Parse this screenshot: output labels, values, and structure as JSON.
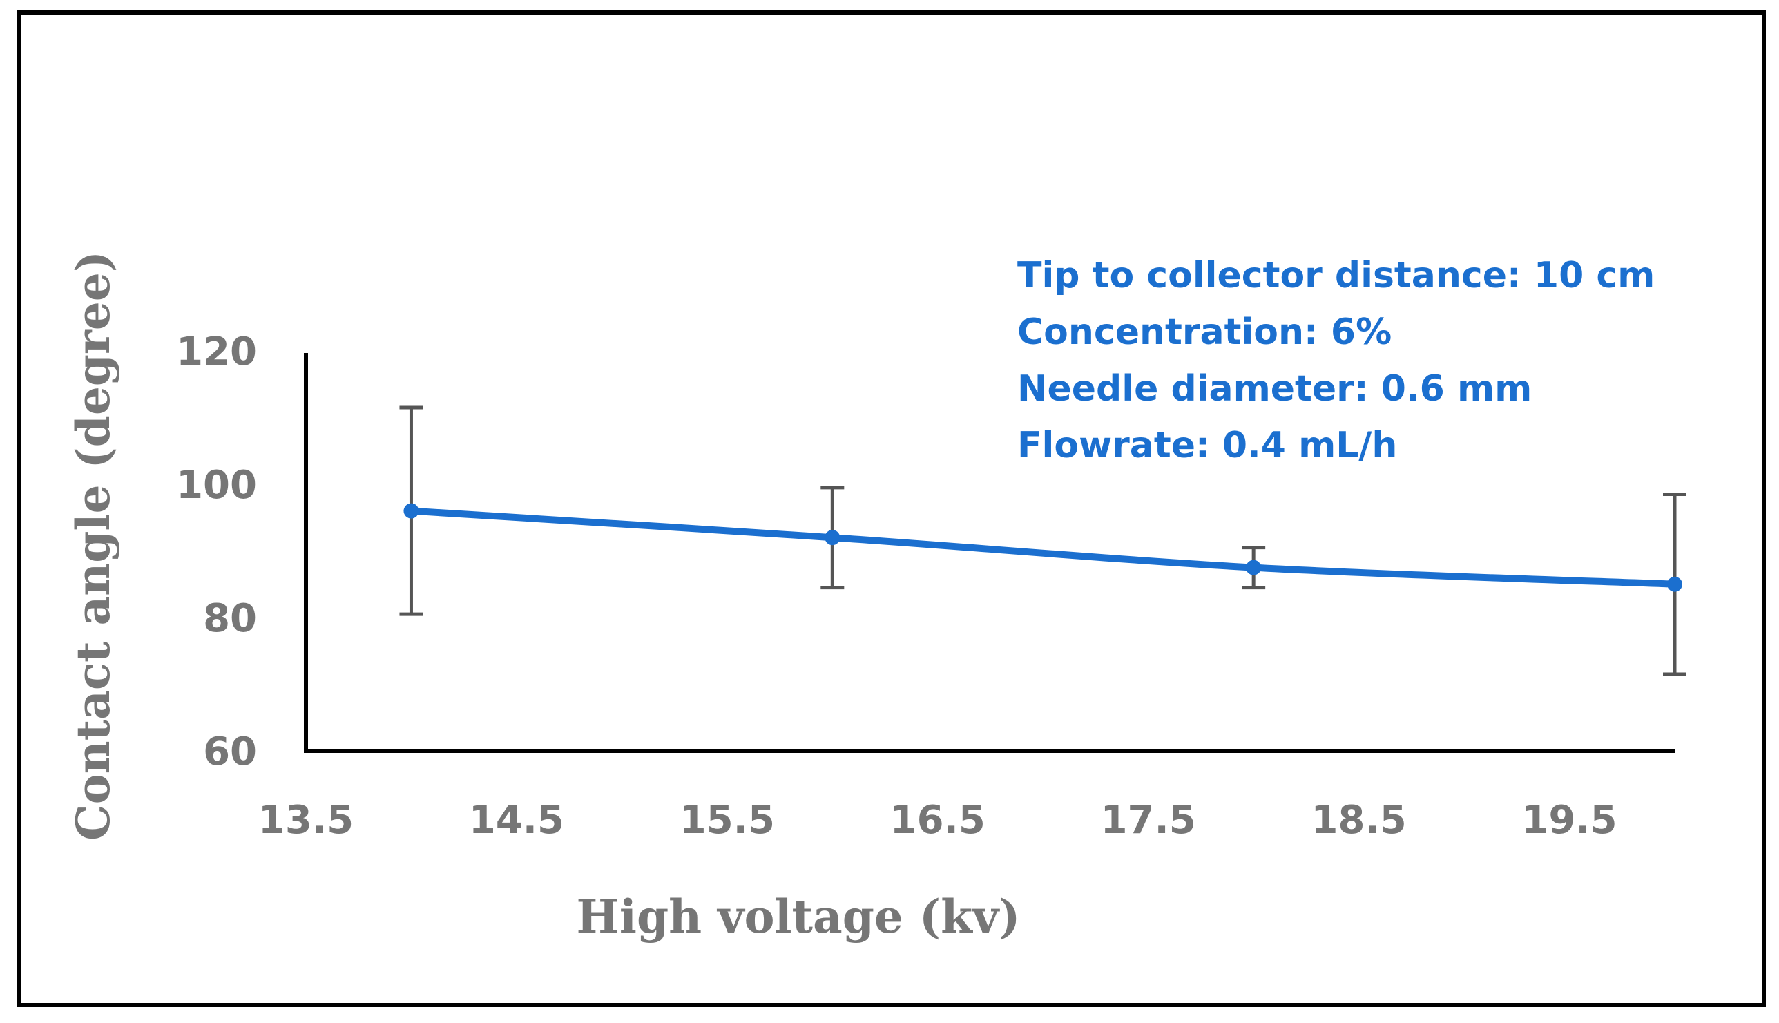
{
  "chart_data": {
    "type": "line",
    "title": "",
    "xlabel": "High voltage (kv)",
    "ylabel": "Contact angle (degree)",
    "xlim": [
      13.5,
      20.0
    ],
    "ylim": [
      60,
      120
    ],
    "x_ticks": [
      "13.5",
      "14.5",
      "15.5",
      "16.5",
      "17.5",
      "18.5",
      "19.5"
    ],
    "y_ticks": [
      "60",
      "80",
      "100",
      "120"
    ],
    "grid": false,
    "legend": "none",
    "series": [
      {
        "name": "Contact angle",
        "color": "#1b6fcf",
        "x": [
          14,
          16,
          18,
          20
        ],
        "y": [
          96,
          92,
          87.5,
          85
        ],
        "error": [
          15.5,
          7.5,
          3,
          13.5
        ]
      }
    ],
    "annotations": [
      "Tip to collector distance: 10 cm",
      "Concentration: 6%",
      "Needle diameter: 0.6 mm",
      "Flowrate: 0.4 mL/h"
    ]
  }
}
